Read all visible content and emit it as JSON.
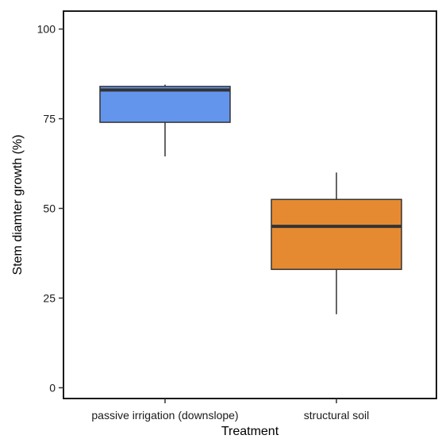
{
  "chart_data": {
    "type": "box",
    "xlabel": "Treatment",
    "ylabel": "Stem diamter growth (%)",
    "ylim": [
      -3,
      105
    ],
    "yticks": [
      0,
      25,
      50,
      75,
      100
    ],
    "grid": false,
    "legend": "none",
    "categories": [
      "passive irrigation (downslope)",
      "structural soil"
    ],
    "boxes": [
      {
        "category": "passive irrigation (downslope)",
        "min": 64.5,
        "q1": 74,
        "median": 83,
        "q3": 84,
        "max": 84.5,
        "color": "#6495ED"
      },
      {
        "category": "structural soil",
        "min": 20.5,
        "q1": 33,
        "median": 45,
        "q3": 52.5,
        "max": 60,
        "color": "#E68A32"
      }
    ]
  }
}
